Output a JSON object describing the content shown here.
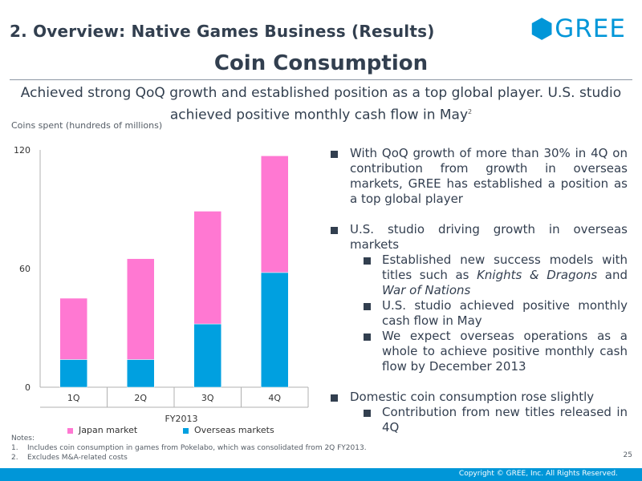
{
  "header": {
    "section_title": "2. Overview: Native Games Business (Results)",
    "logo_text": "GREE",
    "slide_title": "Coin Consumption",
    "subtitle": "Achieved strong QoQ growth and established position as a top global player. U.S. studio achieved positive monthly cash flow in May",
    "subtitle_note": "2"
  },
  "chart_data": {
    "type": "bar",
    "stacked": true,
    "ylabel": "Coins spent (hundreds of millions)",
    "xlabel": "FY2013",
    "categories": [
      "1Q",
      "2Q",
      "3Q",
      "4Q"
    ],
    "series": [
      {
        "name": "Overseas markets",
        "color": "#00a0e0",
        "values": [
          14,
          14,
          32,
          58
        ]
      },
      {
        "name": "Japan market",
        "color": "#ff78d2",
        "values": [
          31,
          51,
          57,
          59
        ]
      }
    ],
    "yticks": [
      0,
      60,
      120
    ],
    "ylim": [
      0,
      120
    ],
    "legend": [
      "Japan market",
      "Overseas markets"
    ]
  },
  "bullets": {
    "b1": "With QoQ growth of more than 30% in 4Q on contribution from growth in overseas markets, GREE has established a position as a top global player",
    "b2": "U.S. studio driving growth in overseas markets",
    "b2_sub1_pre": "Established new success models with titles such as ",
    "b2_sub1_t1": "Knights & Dragons",
    "b2_sub1_mid": " and ",
    "b2_sub1_t2": "War of Nations",
    "b2_sub2": "U.S. studio achieved positive monthly cash flow in May",
    "b2_sub3": "We expect overseas operations as a whole to achieve positive monthly cash flow by December 2013",
    "b3": "Domestic coin consumption rose slightly",
    "b3_sub1": "Contribution from new titles released in 4Q"
  },
  "notes": {
    "heading": "Notes:",
    "n1_num": "1.",
    "n1": "Includes coin consumption in games from Pokelabo, which was  consolidated from 2Q FY2013.",
    "n2_num": "2.",
    "n2": "Excludes M&A-related costs"
  },
  "page_number": "25",
  "footer": {
    "copyright": "Copyright © GREE, Inc. All Rights Reserved."
  }
}
